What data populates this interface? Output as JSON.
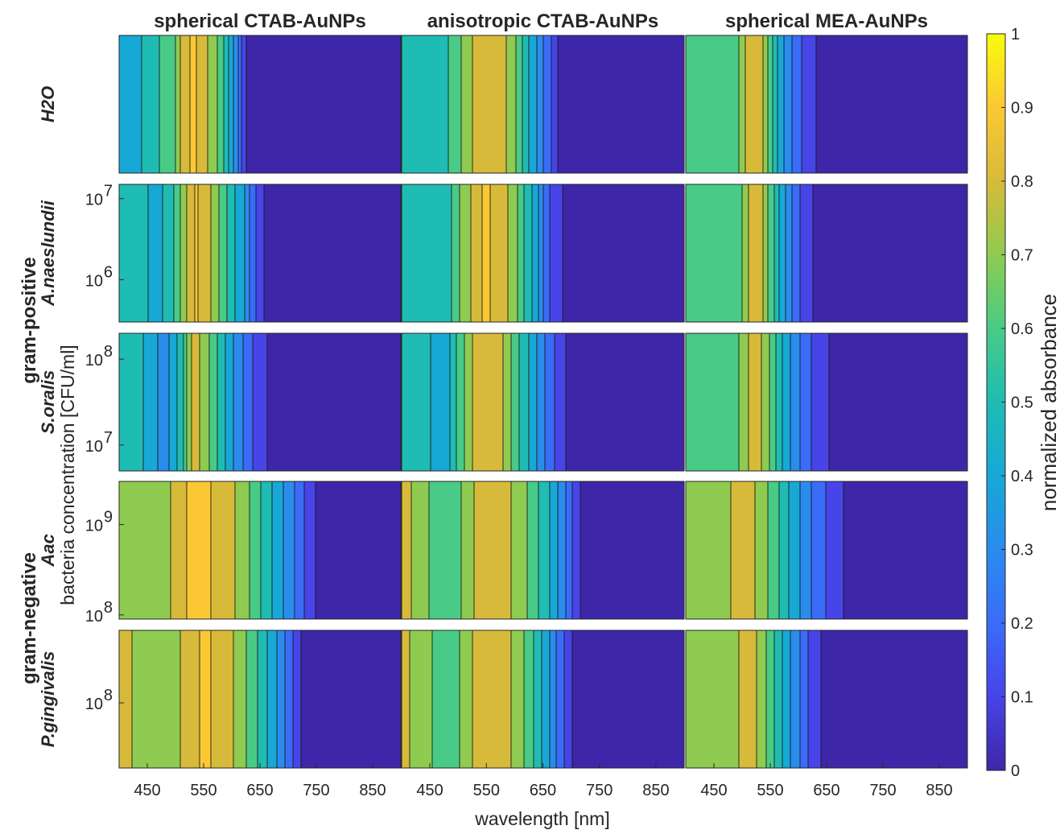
{
  "chart_data": {
    "type": "heatmap",
    "subtype": "filled-contour",
    "colormap": "parula",
    "columns": [
      "spherical CTAB-AuNPs",
      "anisotropic CTAB-AuNPs",
      "spherical MEA-AuNPs"
    ],
    "rows": [
      {
        "label": "H2O",
        "group": "",
        "y_ticks": [],
        "y_tick_exponents": []
      },
      {
        "label": "A.naeslundii",
        "group": "gram-positive",
        "y_ticks": [
          "10",
          "10"
        ],
        "y_tick_exponents": [
          "7",
          "6"
        ],
        "ylim": [
          300000,
          15000000
        ]
      },
      {
        "label": "S.oralis",
        "group": "gram-positive",
        "y_ticks": [
          "10",
          "10"
        ],
        "y_tick_exponents": [
          "8",
          "7"
        ],
        "ylim": [
          5000000,
          200000000
        ]
      },
      {
        "label": "Aac",
        "group": "gram-negative",
        "y_ticks": [
          "10",
          "10"
        ],
        "y_tick_exponents": [
          "9",
          "8"
        ],
        "ylim": [
          90000000,
          3000000000
        ]
      },
      {
        "label": "P.gingivalis",
        "group": "gram-negative",
        "y_ticks": [
          "10"
        ],
        "y_tick_exponents": [
          "8"
        ],
        "ylim": [
          20000000,
          600000000
        ]
      }
    ],
    "groups": [
      "gram-positive",
      "gram-negative"
    ],
    "x_ticks": [
      "450",
      "550",
      "650",
      "750",
      "850"
    ],
    "xlim": [
      400,
      900
    ],
    "xlabel": "wavelength [nm]",
    "ylabel": "bacteria concentration [CFU/ml]",
    "colorbar": {
      "label": "normalized absorbance",
      "ticks": [
        "1",
        "0.9",
        "0.8",
        "0.7",
        "0.6",
        "0.5",
        "0.4",
        "0.3",
        "0.2",
        "0.1",
        "0"
      ],
      "range": [
        0,
        1
      ]
    },
    "panels": [
      {
        "row": 0,
        "col": 0,
        "profile": [
          [
            400,
            0.45
          ],
          [
            440,
            0.5
          ],
          [
            470,
            0.6
          ],
          [
            500,
            0.7
          ],
          [
            510,
            0.86
          ],
          [
            530,
            0.92
          ],
          [
            550,
            0.84
          ],
          [
            570,
            0.72
          ],
          [
            590,
            0.55
          ],
          [
            610,
            0.3
          ],
          [
            625,
            0.08
          ],
          [
            900,
            0.05
          ]
        ]
      },
      {
        "row": 0,
        "col": 1,
        "profile": [
          [
            400,
            0.5
          ],
          [
            450,
            0.5
          ],
          [
            480,
            0.6
          ],
          [
            510,
            0.72
          ],
          [
            540,
            0.9
          ],
          [
            570,
            0.88
          ],
          [
            600,
            0.7
          ],
          [
            630,
            0.45
          ],
          [
            660,
            0.22
          ],
          [
            680,
            0.06
          ],
          [
            900,
            0.05
          ]
        ]
      },
      {
        "row": 0,
        "col": 2,
        "profile": [
          [
            400,
            0.62
          ],
          [
            450,
            0.62
          ],
          [
            490,
            0.68
          ],
          [
            515,
            0.88
          ],
          [
            530,
            0.86
          ],
          [
            545,
            0.7
          ],
          [
            560,
            0.52
          ],
          [
            580,
            0.35
          ],
          [
            600,
            0.22
          ],
          [
            625,
            0.12
          ],
          [
            640,
            0.06
          ],
          [
            900,
            0.05
          ]
        ]
      },
      {
        "row": 1,
        "col": 0,
        "profile": [
          [
            400,
            0.55
          ],
          [
            430,
            0.6
          ],
          [
            460,
            0.45
          ],
          [
            490,
            0.55
          ],
          [
            520,
            0.8
          ],
          [
            535,
            0.92
          ],
          [
            560,
            0.8
          ],
          [
            590,
            0.6
          ],
          [
            620,
            0.4
          ],
          [
            640,
            0.2
          ],
          [
            660,
            0.06
          ],
          [
            900,
            0.05
          ]
        ]
      },
      {
        "row": 1,
        "col": 1,
        "profile": [
          [
            400,
            0.55
          ],
          [
            440,
            0.6
          ],
          [
            470,
            0.5
          ],
          [
            510,
            0.75
          ],
          [
            545,
            0.92
          ],
          [
            580,
            0.85
          ],
          [
            610,
            0.65
          ],
          [
            640,
            0.4
          ],
          [
            660,
            0.2
          ],
          [
            690,
            0.07
          ],
          [
            900,
            0.05
          ]
        ]
      },
      {
        "row": 1,
        "col": 2,
        "profile": [
          [
            400,
            0.62
          ],
          [
            470,
            0.62
          ],
          [
            500,
            0.7
          ],
          [
            515,
            0.86
          ],
          [
            530,
            0.84
          ],
          [
            545,
            0.7
          ],
          [
            565,
            0.5
          ],
          [
            585,
            0.32
          ],
          [
            605,
            0.18
          ],
          [
            630,
            0.07
          ],
          [
            900,
            0.05
          ]
        ]
      },
      {
        "row": 2,
        "col": 0,
        "profile": [
          [
            400,
            0.55
          ],
          [
            440,
            0.5
          ],
          [
            480,
            0.35
          ],
          [
            510,
            0.55
          ],
          [
            530,
            0.85
          ],
          [
            550,
            0.75
          ],
          [
            580,
            0.55
          ],
          [
            610,
            0.35
          ],
          [
            640,
            0.18
          ],
          [
            670,
            0.07
          ],
          [
            900,
            0.05
          ]
        ]
      },
      {
        "row": 2,
        "col": 1,
        "profile": [
          [
            400,
            0.55
          ],
          [
            440,
            0.55
          ],
          [
            470,
            0.4
          ],
          [
            510,
            0.7
          ],
          [
            540,
            0.9
          ],
          [
            570,
            0.85
          ],
          [
            600,
            0.65
          ],
          [
            630,
            0.45
          ],
          [
            660,
            0.25
          ],
          [
            690,
            0.09
          ],
          [
            900,
            0.05
          ]
        ]
      },
      {
        "row": 2,
        "col": 2,
        "profile": [
          [
            400,
            0.62
          ],
          [
            460,
            0.62
          ],
          [
            490,
            0.68
          ],
          [
            510,
            0.8
          ],
          [
            530,
            0.82
          ],
          [
            550,
            0.68
          ],
          [
            570,
            0.5
          ],
          [
            600,
            0.3
          ],
          [
            630,
            0.15
          ],
          [
            670,
            0.06
          ],
          [
            900,
            0.05
          ]
        ]
      },
      {
        "row": 3,
        "col": 0,
        "profile": [
          [
            400,
            0.75
          ],
          [
            450,
            0.75
          ],
          [
            490,
            0.8
          ],
          [
            520,
            0.9
          ],
          [
            550,
            0.92
          ],
          [
            590,
            0.85
          ],
          [
            630,
            0.7
          ],
          [
            670,
            0.5
          ],
          [
            710,
            0.3
          ],
          [
            740,
            0.12
          ],
          [
            760,
            0.05
          ],
          [
            900,
            0.05
          ]
        ]
      },
      {
        "row": 3,
        "col": 1,
        "profile": [
          [
            400,
            0.82
          ],
          [
            430,
            0.78
          ],
          [
            470,
            0.6
          ],
          [
            510,
            0.72
          ],
          [
            550,
            0.9
          ],
          [
            580,
            0.85
          ],
          [
            620,
            0.7
          ],
          [
            660,
            0.5
          ],
          [
            690,
            0.3
          ],
          [
            710,
            0.12
          ],
          [
            730,
            0.05
          ],
          [
            900,
            0.05
          ]
        ]
      },
      {
        "row": 3,
        "col": 2,
        "profile": [
          [
            400,
            0.75
          ],
          [
            440,
            0.72
          ],
          [
            470,
            0.78
          ],
          [
            500,
            0.85
          ],
          [
            520,
            0.8
          ],
          [
            550,
            0.68
          ],
          [
            580,
            0.5
          ],
          [
            620,
            0.3
          ],
          [
            660,
            0.15
          ],
          [
            690,
            0.07
          ],
          [
            900,
            0.05
          ]
        ]
      },
      {
        "row": 4,
        "col": 0,
        "profile": [
          [
            400,
            0.82
          ],
          [
            440,
            0.78
          ],
          [
            480,
            0.7
          ],
          [
            520,
            0.85
          ],
          [
            550,
            0.92
          ],
          [
            590,
            0.85
          ],
          [
            630,
            0.68
          ],
          [
            670,
            0.45
          ],
          [
            700,
            0.25
          ],
          [
            720,
            0.1
          ],
          [
            740,
            0.05
          ],
          [
            900,
            0.05
          ]
        ]
      },
      {
        "row": 4,
        "col": 1,
        "profile": [
          [
            400,
            0.82
          ],
          [
            440,
            0.75
          ],
          [
            480,
            0.6
          ],
          [
            520,
            0.78
          ],
          [
            550,
            0.9
          ],
          [
            580,
            0.85
          ],
          [
            620,
            0.68
          ],
          [
            650,
            0.48
          ],
          [
            680,
            0.25
          ],
          [
            700,
            0.1
          ],
          [
            720,
            0.05
          ],
          [
            900,
            0.05
          ]
        ]
      },
      {
        "row": 4,
        "col": 2,
        "profile": [
          [
            400,
            0.78
          ],
          [
            440,
            0.72
          ],
          [
            470,
            0.72
          ],
          [
            500,
            0.82
          ],
          [
            520,
            0.82
          ],
          [
            545,
            0.68
          ],
          [
            570,
            0.5
          ],
          [
            600,
            0.3
          ],
          [
            625,
            0.15
          ],
          [
            650,
            0.06
          ],
          [
            900,
            0.05
          ]
        ]
      }
    ]
  }
}
